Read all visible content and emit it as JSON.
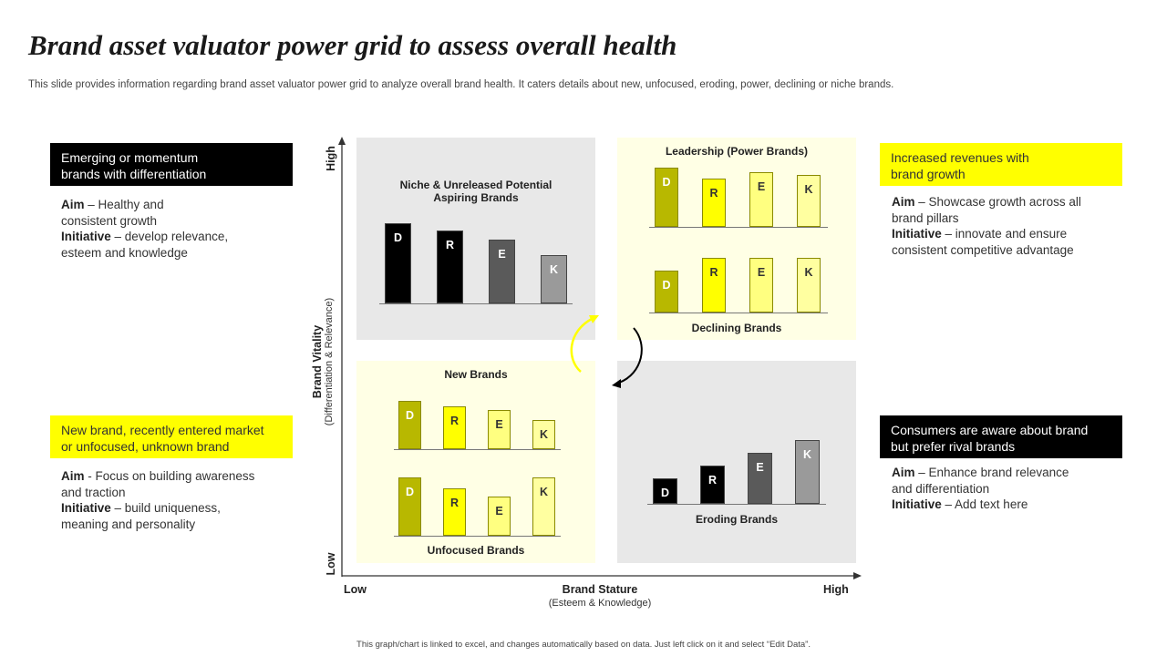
{
  "title": "Brand asset valuator power grid to assess overall health",
  "subtitle": "This slide provides information regarding brand asset valuator power grid to analyze overall brand health. It caters details about new, unfocused, eroding, power, declining or niche brands.",
  "footer": "This graph/chart is linked to excel, and changes automatically based on data. Just left click on it and select “Edit Data”.",
  "colors": {
    "black": "#000000",
    "yellow": "#ffff00",
    "olive": "#b8b800",
    "gray_quad": "#e8e8e8",
    "yellow_quad": "#ffffe5"
  },
  "left_top": {
    "banner": [
      "Emerging or momentum",
      "brands with differentiation"
    ],
    "aim_label": "Aim",
    "aim_text": " – Healthy and",
    "aim_text2": "consistent growth",
    "initiative_label": "Initiative",
    "initiative_text": " – develop relevance,",
    "initiative_text2": "esteem and knowledge"
  },
  "left_bottom": {
    "banner": [
      "New brand, recently entered market",
      "or unfocused, unknown brand"
    ],
    "aim_label": "Aim",
    "aim_text": "  - Focus on building awareness",
    "aim_text2": "and traction",
    "initiative_label": "Initiative",
    "initiative_text": " – build uniqueness,",
    "initiative_text2": "meaning and personality"
  },
  "right_top": {
    "banner": [
      "Increased revenues with",
      "brand growth"
    ],
    "aim_label": "Aim",
    "aim_text": " – Showcase growth across all",
    "aim_text2": "brand pillars",
    "initiative_label": "Initiative",
    "initiative_text": " – innovate and ensure",
    "initiative_text2": "consistent competitive advantage"
  },
  "right_bottom": {
    "banner": [
      "Consumers are aware about brand",
      "but prefer rival brands"
    ],
    "aim_label": "Aim",
    "aim_text": " – Enhance brand relevance",
    "aim_text2": "and differentiation",
    "initiative_label": "Initiative",
    "initiative_text": " – Add text here",
    "initiative_text2": ""
  },
  "axes": {
    "y_title": "Brand Vitality",
    "y_sub": "(Differentiation & Relevance)",
    "y_high": "High",
    "y_low": "Low",
    "x_title": "Brand Stature",
    "x_sub": "(Esteem & Knowledge)",
    "x_low": "Low",
    "x_high": "High"
  },
  "quadrants": {
    "niche": {
      "label": [
        "Niche & Unreleased Potential",
        "Aspiring Brands"
      ],
      "bars": [
        "D",
        "R",
        "E",
        "K"
      ],
      "values": [
        88,
        80,
        70,
        53
      ]
    },
    "leadership": {
      "label": "Leadership (Power Brands)",
      "bars": [
        "D",
        "R",
        "E",
        "K"
      ],
      "values": [
        65,
        53,
        60,
        57
      ]
    },
    "declining": {
      "label": "Declining Brands",
      "bars": [
        "D",
        "R",
        "E",
        "K"
      ],
      "values": [
        46,
        60,
        60,
        60
      ]
    },
    "new": {
      "label": "New Brands",
      "bars": [
        "D",
        "R",
        "E",
        "K"
      ],
      "values": [
        53,
        47,
        43,
        32
      ]
    },
    "unfocused": {
      "label": "Unfocused Brands",
      "bars": [
        "D",
        "R",
        "E",
        "K"
      ],
      "values": [
        64,
        52,
        43,
        64
      ]
    },
    "eroding": {
      "label": "Eroding Brands",
      "bars": [
        "D",
        "R",
        "E",
        "K"
      ],
      "values": [
        28,
        42,
        56,
        70
      ]
    }
  }
}
